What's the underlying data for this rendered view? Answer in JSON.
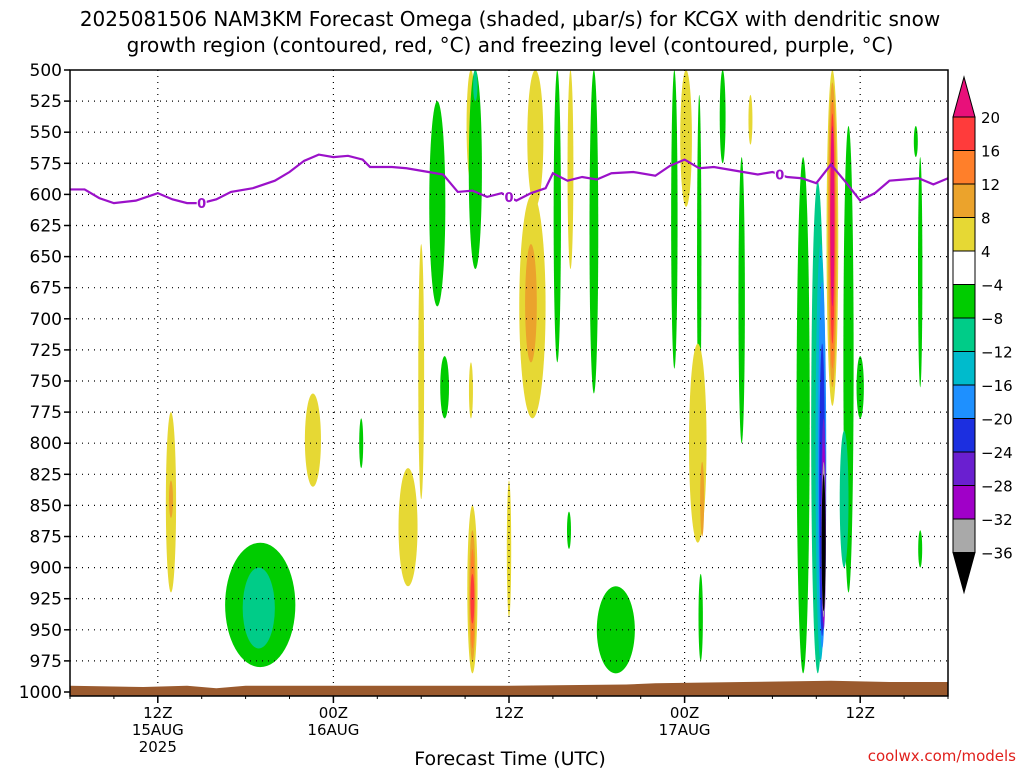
{
  "chart_data": {
    "type": "heatmap",
    "title_line1": "2025081506 NAM3KM Forecast Omega (shaded, μbar/s) for KCGX with dendritic snow",
    "title_line2": "growth region (contoured, red, °C) and freezing level (contoured, purple, °C)",
    "xlabel": "Forecast Time (UTC)",
    "ylabel": "",
    "credit": "coolwx.com/models",
    "y_axis": {
      "unit": "hPa",
      "reversed": true,
      "ylim": [
        1000,
        500
      ],
      "ticks": [
        500,
        525,
        550,
        575,
        600,
        625,
        650,
        675,
        700,
        725,
        750,
        775,
        800,
        825,
        850,
        875,
        900,
        925,
        950,
        975,
        1000
      ]
    },
    "x_axis": {
      "unit": "hours",
      "xlim": [
        0,
        60
      ],
      "ticks": [
        {
          "hour": 6,
          "l1": "12Z",
          "l2": "15AUG",
          "l3": "2025"
        },
        {
          "hour": 18,
          "l1": "00Z",
          "l2": "16AUG",
          "l3": ""
        },
        {
          "hour": 30,
          "l1": "12Z",
          "l2": "",
          "l3": ""
        },
        {
          "hour": 42,
          "l1": "00Z",
          "l2": "17AUG",
          "l3": ""
        },
        {
          "hour": 54,
          "l1": "12Z",
          "l2": "",
          "l3": ""
        }
      ],
      "gridlines_hours": [
        6,
        18,
        30,
        42,
        54
      ],
      "grid": true
    },
    "colorbar": {
      "labels": [
        "20",
        "16",
        "12",
        "8",
        "4",
        "−4",
        "−8",
        "−12",
        "−16",
        "−20",
        "−24",
        "−28",
        "−32",
        "−36"
      ],
      "bins": [
        {
          "range": ">20",
          "color": "#e8107a"
        },
        {
          "range": "16–20",
          "color": "#ff3b3b"
        },
        {
          "range": "12–16",
          "color": "#ff7f2a"
        },
        {
          "range": "8–12",
          "color": "#eba32c"
        },
        {
          "range": "4–8",
          "color": "#e6d834"
        },
        {
          "range": "-4–4",
          "color": "#ffffff"
        },
        {
          "range": "-8–-4",
          "color": "#00cc00"
        },
        {
          "range": "-12–-8",
          "color": "#00cc88"
        },
        {
          "range": "-16–-12",
          "color": "#00bbcc"
        },
        {
          "range": "-20–-16",
          "color": "#1e90ff"
        },
        {
          "range": "-24–-20",
          "color": "#1c2fe0"
        },
        {
          "range": "-28–-24",
          "color": "#6a1fd0"
        },
        {
          "range": "-32–-28",
          "color": "#a000c8"
        },
        {
          "range": "-36–-32",
          "color": "#a9a9a9"
        },
        {
          "range": "<-36",
          "color": "#000000"
        }
      ]
    },
    "freezing_level": {
      "label": "0",
      "color": "#9b11c9",
      "label_hours": [
        9.0,
        30.0,
        48.5
      ],
      "points": [
        {
          "h": 0.0,
          "p": 596
        },
        {
          "h": 1.0,
          "p": 596
        },
        {
          "h": 2.0,
          "p": 603
        },
        {
          "h": 3.0,
          "p": 607
        },
        {
          "h": 4.5,
          "p": 605
        },
        {
          "h": 6.0,
          "p": 599
        },
        {
          "h": 7.0,
          "p": 604
        },
        {
          "h": 8.0,
          "p": 607
        },
        {
          "h": 9.0,
          "p": 607
        },
        {
          "h": 10.0,
          "p": 604
        },
        {
          "h": 11.0,
          "p": 598
        },
        {
          "h": 12.5,
          "p": 595
        },
        {
          "h": 14.0,
          "p": 589
        },
        {
          "h": 15.0,
          "p": 582
        },
        {
          "h": 16.0,
          "p": 573
        },
        {
          "h": 17.0,
          "p": 568
        },
        {
          "h": 18.0,
          "p": 570
        },
        {
          "h": 19.0,
          "p": 569
        },
        {
          "h": 20.0,
          "p": 572
        },
        {
          "h": 20.5,
          "p": 578
        },
        {
          "h": 22.0,
          "p": 578
        },
        {
          "h": 23.0,
          "p": 579
        },
        {
          "h": 24.5,
          "p": 582
        },
        {
          "h": 25.5,
          "p": 584
        },
        {
          "h": 26.5,
          "p": 598
        },
        {
          "h": 27.5,
          "p": 597
        },
        {
          "h": 28.5,
          "p": 602
        },
        {
          "h": 29.5,
          "p": 599
        },
        {
          "h": 30.5,
          "p": 605
        },
        {
          "h": 31.5,
          "p": 599
        },
        {
          "h": 32.5,
          "p": 595
        },
        {
          "h": 33.0,
          "p": 583
        },
        {
          "h": 34.0,
          "p": 589
        },
        {
          "h": 35.0,
          "p": 586
        },
        {
          "h": 36.0,
          "p": 588
        },
        {
          "h": 37.0,
          "p": 583
        },
        {
          "h": 38.5,
          "p": 582
        },
        {
          "h": 40.0,
          "p": 585
        },
        {
          "h": 41.0,
          "p": 577
        },
        {
          "h": 42.0,
          "p": 572
        },
        {
          "h": 43.0,
          "p": 579
        },
        {
          "h": 44.0,
          "p": 578
        },
        {
          "h": 45.5,
          "p": 581
        },
        {
          "h": 47.0,
          "p": 584
        },
        {
          "h": 48.0,
          "p": 582
        },
        {
          "h": 49.0,
          "p": 586
        },
        {
          "h": 50.0,
          "p": 587
        },
        {
          "h": 51.0,
          "p": 591
        },
        {
          "h": 52.0,
          "p": 576
        },
        {
          "h": 53.0,
          "p": 590
        },
        {
          "h": 54.0,
          "p": 605
        },
        {
          "h": 55.0,
          "p": 599
        },
        {
          "h": 56.0,
          "p": 589
        },
        {
          "h": 57.0,
          "p": 588
        },
        {
          "h": 58.0,
          "p": 587
        },
        {
          "h": 59.0,
          "p": 592
        },
        {
          "h": 60.0,
          "p": 587
        }
      ]
    },
    "omega_features": [
      {
        "bin": "4–8",
        "h": 6.9,
        "p_top": 775,
        "p_bot": 920,
        "w": 0.35
      },
      {
        "bin": "8–12",
        "h": 6.9,
        "p_top": 830,
        "p_bot": 860,
        "w": 0.12
      },
      {
        "bin": "-8–-4",
        "h": 13.0,
        "p_top": 880,
        "p_bot": 980,
        "w": 2.4
      },
      {
        "bin": "-12–-8",
        "h": 12.9,
        "p_top": 900,
        "p_bot": 965,
        "w": 1.1
      },
      {
        "bin": "4–8",
        "h": 16.6,
        "p_top": 760,
        "p_bot": 835,
        "w": 0.55
      },
      {
        "bin": "-8–-4",
        "h": 19.9,
        "p_top": 780,
        "p_bot": 820,
        "w": 0.12
      },
      {
        "bin": "4–8",
        "h": 23.1,
        "p_top": 820,
        "p_bot": 915,
        "w": 0.65
      },
      {
        "bin": "4–8",
        "h": 24.0,
        "p_top": 640,
        "p_bot": 845,
        "w": 0.2
      },
      {
        "bin": "-8–-4",
        "h": 25.1,
        "p_top": 525,
        "p_bot": 690,
        "w": 0.55
      },
      {
        "bin": "-8–-4",
        "h": 25.6,
        "p_top": 730,
        "p_bot": 780,
        "w": 0.3
      },
      {
        "bin": "4–8",
        "h": 27.4,
        "p_top": 500,
        "p_bot": 590,
        "w": 0.3
      },
      {
        "bin": "-8–-4",
        "h": 27.7,
        "p_top": 500,
        "p_bot": 660,
        "w": 0.45
      },
      {
        "bin": "-12–-8",
        "h": 27.7,
        "p_top": 500,
        "p_bot": 525,
        "w": 0.15
      },
      {
        "bin": "4–8",
        "h": 27.5,
        "p_top": 850,
        "p_bot": 985,
        "w": 0.35
      },
      {
        "bin": "8–12",
        "h": 27.5,
        "p_top": 870,
        "p_bot": 975,
        "w": 0.22
      },
      {
        "bin": "12–16",
        "h": 27.5,
        "p_top": 885,
        "p_bot": 965,
        "w": 0.14
      },
      {
        "bin": "16–20",
        "h": 27.5,
        "p_top": 905,
        "p_bot": 945,
        "w": 0.07
      },
      {
        "bin": "4–8",
        "h": 27.4,
        "p_top": 735,
        "p_bot": 780,
        "w": 0.12
      },
      {
        "bin": "4–8",
        "h": 30.0,
        "p_top": 830,
        "p_bot": 940,
        "w": 0.15
      },
      {
        "bin": "4–8",
        "h": 31.8,
        "p_top": 500,
        "p_bot": 610,
        "w": 0.55
      },
      {
        "bin": "4–8",
        "h": 31.6,
        "p_top": 600,
        "p_bot": 780,
        "w": 0.9
      },
      {
        "bin": "8–12",
        "h": 31.5,
        "p_top": 640,
        "p_bot": 735,
        "w": 0.4
      },
      {
        "bin": "-8–-4",
        "h": 33.3,
        "p_top": 500,
        "p_bot": 735,
        "w": 0.25
      },
      {
        "bin": "4–8",
        "h": 34.2,
        "p_top": 500,
        "p_bot": 660,
        "w": 0.2
      },
      {
        "bin": "-8–-4",
        "h": 34.1,
        "p_top": 855,
        "p_bot": 885,
        "w": 0.12
      },
      {
        "bin": "-8–-4",
        "h": 35.8,
        "p_top": 500,
        "p_bot": 760,
        "w": 0.3
      },
      {
        "bin": "-8–-4",
        "h": 37.3,
        "p_top": 915,
        "p_bot": 985,
        "w": 1.3
      },
      {
        "bin": "-8–-4",
        "h": 41.3,
        "p_top": 500,
        "p_bot": 740,
        "w": 0.22
      },
      {
        "bin": "4–8",
        "h": 42.1,
        "p_top": 500,
        "p_bot": 610,
        "w": 0.4
      },
      {
        "bin": "-8–-4",
        "h": 43.0,
        "p_top": 520,
        "p_bot": 785,
        "w": 0.15
      },
      {
        "bin": "4–8",
        "h": 42.9,
        "p_top": 720,
        "p_bot": 880,
        "w": 0.6
      },
      {
        "bin": "8–12",
        "h": 43.2,
        "p_top": 815,
        "p_bot": 875,
        "w": 0.12
      },
      {
        "bin": "-8–-4",
        "h": 43.1,
        "p_top": 905,
        "p_bot": 975,
        "w": 0.15
      },
      {
        "bin": "-8–-4",
        "h": 44.6,
        "p_top": 500,
        "p_bot": 575,
        "w": 0.2
      },
      {
        "bin": "-8–-4",
        "h": 45.9,
        "p_top": 570,
        "p_bot": 800,
        "w": 0.22
      },
      {
        "bin": "4–8",
        "h": 46.5,
        "p_top": 520,
        "p_bot": 560,
        "w": 0.06
      },
      {
        "bin": "-8–-4",
        "h": 50.1,
        "p_top": 570,
        "p_bot": 985,
        "w": 0.45
      },
      {
        "bin": "-12–-8",
        "h": 51.1,
        "p_top": 590,
        "p_bot": 985,
        "w": 0.45
      },
      {
        "bin": "-16–-12",
        "h": 51.3,
        "p_top": 640,
        "p_bot": 975,
        "w": 0.35
      },
      {
        "bin": "-20–-16",
        "h": 51.4,
        "p_top": 670,
        "p_bot": 965,
        "w": 0.28
      },
      {
        "bin": "-24–-20",
        "h": 51.4,
        "p_top": 720,
        "p_bot": 955,
        "w": 0.2
      },
      {
        "bin": "-28–-24",
        "h": 51.5,
        "p_top": 780,
        "p_bot": 950,
        "w": 0.16
      },
      {
        "bin": "-32–-28",
        "h": 51.5,
        "p_top": 800,
        "p_bot": 945,
        "w": 0.12
      },
      {
        "bin": "-36–-32",
        "h": 51.5,
        "p_top": 815,
        "p_bot": 940,
        "w": 0.1
      },
      {
        "bin": "<-36",
        "h": 51.5,
        "p_top": 825,
        "p_bot": 935,
        "w": 0.08
      },
      {
        "bin": "4–8",
        "h": 52.1,
        "p_top": 500,
        "p_bot": 770,
        "w": 0.4
      },
      {
        "bin": "8–12",
        "h": 52.1,
        "p_top": 510,
        "p_bot": 755,
        "w": 0.3
      },
      {
        "bin": "12–16",
        "h": 52.1,
        "p_top": 525,
        "p_bot": 740,
        "w": 0.22
      },
      {
        "bin": "16–20",
        "h": 52.1,
        "p_top": 535,
        "p_bot": 720,
        "w": 0.16
      },
      {
        "bin": "&gt;20",
        "h": 52.1,
        "p_top": 545,
        "p_bot": 690,
        "w": 0.12
      },
      {
        "bin": "-8–-4",
        "h": 53.2,
        "p_top": 545,
        "p_bot": 920,
        "w": 0.35
      },
      {
        "bin": "-12–-8",
        "h": 52.9,
        "p_top": 790,
        "p_bot": 900,
        "w": 0.3
      },
      {
        "bin": "-8–-4",
        "h": 54.0,
        "p_top": 730,
        "p_bot": 780,
        "w": 0.25
      },
      {
        "bin": "-8–-4",
        "h": 58.1,
        "p_top": 570,
        "p_bot": 755,
        "w": 0.15
      },
      {
        "bin": "-8–-4",
        "h": 58.1,
        "p_top": 870,
        "p_bot": 900,
        "w": 0.08
      },
      {
        "bin": "-8–-4",
        "h": 57.8,
        "p_top": 545,
        "p_bot": 570,
        "w": 0.06
      }
    ],
    "surface_terrain": {
      "color": "#9a5a2e",
      "points": [
        {
          "h": 0,
          "p": 995
        },
        {
          "h": 5,
          "p": 996
        },
        {
          "h": 8,
          "p": 995
        },
        {
          "h": 10,
          "p": 997
        },
        {
          "h": 12,
          "p": 995
        },
        {
          "h": 30,
          "p": 995
        },
        {
          "h": 38,
          "p": 994
        },
        {
          "h": 40,
          "p": 993
        },
        {
          "h": 46,
          "p": 992
        },
        {
          "h": 52,
          "p": 991
        },
        {
          "h": 56,
          "p": 992
        },
        {
          "h": 60,
          "p": 992
        }
      ]
    }
  }
}
